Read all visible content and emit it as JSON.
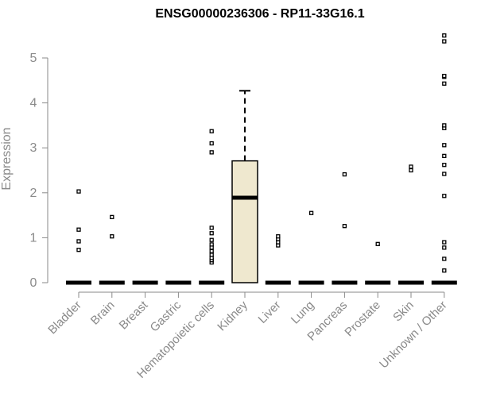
{
  "chart_data": {
    "type": "box",
    "title": "ENSG00000236306 - RP11-33G16.1",
    "xlabel": "",
    "ylabel": "Expression",
    "ylim": [
      0,
      5.6
    ],
    "yticks": [
      0,
      1,
      2,
      3,
      4,
      5
    ],
    "grid": false,
    "categories": [
      "Bladder",
      "Brain",
      "Breast",
      "Gastric",
      "Hematopoietic cells",
      "Kidney",
      "Liver",
      "Lung",
      "Pancreas",
      "Prostate",
      "Skin",
      "Unknown / Other"
    ],
    "boxes": [
      {
        "category": "Bladder",
        "q1": 0,
        "median": 0,
        "q3": 0,
        "whisker_low": 0,
        "whisker_high": 0,
        "outliers": [
          0.73,
          0.92,
          1.18,
          2.03
        ]
      },
      {
        "category": "Brain",
        "q1": 0,
        "median": 0,
        "q3": 0,
        "whisker_low": 0,
        "whisker_high": 0,
        "outliers": [
          1.03,
          1.46
        ]
      },
      {
        "category": "Breast",
        "q1": 0,
        "median": 0,
        "q3": 0,
        "whisker_low": 0,
        "whisker_high": 0,
        "outliers": []
      },
      {
        "category": "Gastric",
        "q1": 0,
        "median": 0,
        "q3": 0,
        "whisker_low": 0,
        "whisker_high": 0,
        "outliers": []
      },
      {
        "category": "Hematopoietic cells",
        "q1": 0,
        "median": 0,
        "q3": 0,
        "whisker_low": 0,
        "whisker_high": 0,
        "outliers": [
          0.45,
          0.5,
          0.55,
          0.62,
          0.7,
          0.78,
          0.85,
          0.95,
          1.1,
          1.22,
          2.9,
          3.1,
          3.37
        ]
      },
      {
        "category": "Kidney",
        "q1": 0,
        "median": 1.89,
        "q3": 2.71,
        "whisker_low": 0,
        "whisker_high": 4.27,
        "outliers": []
      },
      {
        "category": "Liver",
        "q1": 0,
        "median": 0,
        "q3": 0,
        "whisker_low": 0,
        "whisker_high": 0,
        "outliers": [
          0.83,
          0.9,
          0.97,
          1.03
        ]
      },
      {
        "category": "Lung",
        "q1": 0,
        "median": 0,
        "q3": 0,
        "whisker_low": 0,
        "whisker_high": 0,
        "outliers": [
          1.55
        ]
      },
      {
        "category": "Pancreas",
        "q1": 0,
        "median": 0,
        "q3": 0,
        "whisker_low": 0,
        "whisker_high": 0,
        "outliers": [
          1.26,
          2.41
        ]
      },
      {
        "category": "Prostate",
        "q1": 0,
        "median": 0,
        "q3": 0,
        "whisker_low": 0,
        "whisker_high": 0,
        "outliers": [
          0.86
        ]
      },
      {
        "category": "Skin",
        "q1": 0,
        "median": 0,
        "q3": 0,
        "whisker_low": 0,
        "whisker_high": 0,
        "outliers": [
          2.5,
          2.58
        ]
      },
      {
        "category": "Unknown / Other",
        "q1": 0,
        "median": 0,
        "q3": 0,
        "whisker_low": 0,
        "whisker_high": 0,
        "outliers": [
          0.27,
          0.53,
          0.78,
          0.9,
          1.93,
          2.42,
          2.62,
          2.82,
          3.06,
          3.44,
          3.5,
          4.43,
          4.58,
          4.6,
          5.37,
          5.5
        ]
      }
    ],
    "colors": {
      "box_fill": "#efe8cf",
      "box_stroke": "#000000",
      "axis": "#8a8a8a",
      "label": "#8a8a8a"
    }
  }
}
